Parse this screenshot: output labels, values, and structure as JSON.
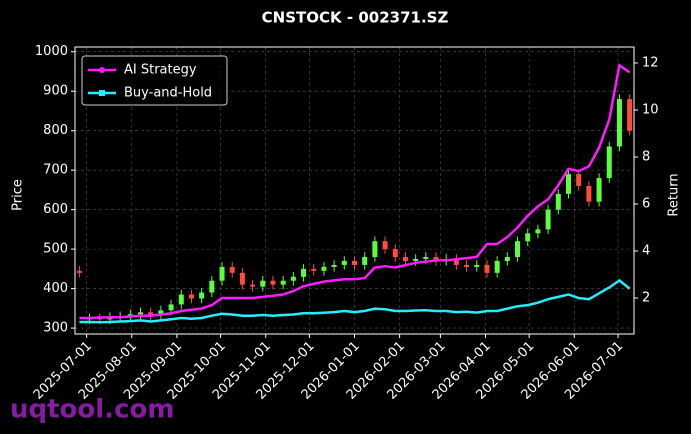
{
  "chart_data": {
    "type": "candlestick",
    "title": "CNSTOCK - 002371.SZ",
    "ylabel": "Price",
    "y2label": "Return",
    "watermark": "uqtool.com",
    "x": [
      "2025-06-26",
      "2025-07-03",
      "2025-07-10",
      "2025-07-17",
      "2025-07-24",
      "2025-07-31",
      "2025-08-07",
      "2025-08-14",
      "2025-08-21",
      "2025-08-28",
      "2025-09-04",
      "2025-09-11",
      "2025-09-18",
      "2025-09-25",
      "2025-10-02",
      "2025-10-09",
      "2025-10-16",
      "2025-10-23",
      "2025-10-30",
      "2025-11-06",
      "2025-11-13",
      "2025-11-20",
      "2025-11-27",
      "2025-12-04",
      "2025-12-11",
      "2025-12-18",
      "2025-12-25",
      "2026-01-01",
      "2026-01-08",
      "2026-01-15",
      "2026-01-22",
      "2026-01-29",
      "2026-02-05",
      "2026-02-12",
      "2026-02-19",
      "2026-02-26",
      "2026-03-05",
      "2026-03-12",
      "2026-03-19",
      "2026-03-26",
      "2026-04-02",
      "2026-04-09",
      "2026-04-16",
      "2026-04-23",
      "2026-04-30",
      "2026-05-07",
      "2026-05-14",
      "2026-05-21",
      "2026-05-28",
      "2026-06-04",
      "2026-06-11",
      "2026-06-18",
      "2026-06-25",
      "2026-07-02",
      "2026-07-09"
    ],
    "candles": {
      "up_color": "#5cff3c",
      "down_color": "#ff4c3c",
      "open": [
        445,
        322,
        325,
        322,
        328,
        330,
        335,
        340,
        332,
        345,
        360,
        385,
        375,
        390,
        420,
        455,
        440,
        410,
        405,
        420,
        410,
        420,
        430,
        450,
        445,
        455,
        460,
        470,
        460,
        480,
        520,
        500,
        480,
        470,
        475,
        480,
        470,
        475,
        460,
        455,
        460,
        440,
        470,
        480,
        520,
        540,
        550,
        600,
        640,
        690,
        660,
        620,
        680,
        760,
        880
      ],
      "high": [
        457,
        337,
        337,
        340,
        342,
        347,
        352,
        352,
        357,
        372,
        397,
        397,
        402,
        432,
        467,
        467,
        452,
        422,
        432,
        432,
        432,
        442,
        462,
        462,
        467,
        472,
        482,
        482,
        492,
        532,
        532,
        512,
        492,
        487,
        492,
        492,
        487,
        487,
        472,
        472,
        472,
        482,
        492,
        532,
        552,
        562,
        612,
        652,
        702,
        702,
        672,
        692,
        772,
        892,
        892
      ],
      "low": [
        428,
        310,
        310,
        310,
        316,
        318,
        323,
        320,
        320,
        333,
        348,
        363,
        363,
        378,
        408,
        428,
        398,
        393,
        393,
        398,
        398,
        408,
        418,
        433,
        433,
        443,
        448,
        448,
        448,
        468,
        488,
        468,
        458,
        458,
        463,
        458,
        458,
        448,
        443,
        443,
        428,
        428,
        458,
        468,
        508,
        528,
        538,
        588,
        628,
        648,
        608,
        608,
        668,
        748,
        788
      ],
      "close": [
        440,
        325,
        322,
        328,
        330,
        335,
        340,
        332,
        345,
        360,
        385,
        375,
        390,
        420,
        455,
        440,
        410,
        405,
        420,
        410,
        420,
        430,
        450,
        445,
        455,
        460,
        470,
        460,
        480,
        520,
        500,
        480,
        470,
        475,
        480,
        470,
        475,
        460,
        455,
        460,
        440,
        470,
        480,
        520,
        540,
        550,
        600,
        640,
        690,
        660,
        620,
        680,
        760,
        880,
        800
      ]
    },
    "series": [
      {
        "name": "AI Strategy",
        "color": "#ff1aff",
        "axis": "y2",
        "values": [
          1.15,
          1.15,
          1.17,
          1.18,
          1.18,
          1.22,
          1.25,
          1.25,
          1.3,
          1.35,
          1.45,
          1.5,
          1.55,
          1.7,
          2.0,
          2.0,
          2.0,
          2.0,
          2.05,
          2.1,
          2.15,
          2.3,
          2.5,
          2.6,
          2.7,
          2.75,
          2.8,
          2.8,
          2.85,
          3.3,
          3.35,
          3.3,
          3.4,
          3.5,
          3.55,
          3.6,
          3.6,
          3.65,
          3.7,
          3.75,
          4.3,
          4.3,
          4.6,
          5.0,
          5.5,
          5.9,
          6.2,
          6.8,
          7.5,
          7.4,
          7.6,
          8.4,
          9.6,
          11.9,
          11.6
        ]
      },
      {
        "name": "Buy-and-Hold",
        "color": "#22eeff",
        "axis": "y2",
        "values": [
          0.98,
          0.98,
          0.97,
          0.98,
          1.0,
          1.02,
          1.05,
          1.0,
          1.05,
          1.1,
          1.15,
          1.12,
          1.15,
          1.25,
          1.33,
          1.3,
          1.25,
          1.25,
          1.28,
          1.25,
          1.28,
          1.3,
          1.35,
          1.35,
          1.37,
          1.4,
          1.45,
          1.4,
          1.45,
          1.55,
          1.52,
          1.45,
          1.45,
          1.47,
          1.48,
          1.45,
          1.45,
          1.4,
          1.42,
          1.38,
          1.45,
          1.45,
          1.55,
          1.65,
          1.7,
          1.8,
          1.95,
          2.05,
          2.15,
          2.0,
          1.95,
          2.2,
          2.45,
          2.75,
          2.4
        ]
      }
    ],
    "xlim": [
      "2025-06-23",
      "2026-07-12"
    ],
    "xticks": [
      "2025-07-01",
      "2025-08-01",
      "2025-09-01",
      "2025-10-01",
      "2025-11-01",
      "2025-12-01",
      "2026-01-01",
      "2026-02-01",
      "2026-03-01",
      "2026-04-01",
      "2026-05-01",
      "2026-06-01",
      "2026-07-01"
    ],
    "ylim": [
      285,
      1012
    ],
    "yticks": [
      300,
      400,
      500,
      600,
      700,
      800,
      900,
      1000
    ],
    "y2lim": [
      0.47,
      12.68
    ],
    "y2ticks": [
      2,
      4,
      6,
      8,
      10,
      12
    ],
    "grid": true,
    "legend": "upper left"
  }
}
